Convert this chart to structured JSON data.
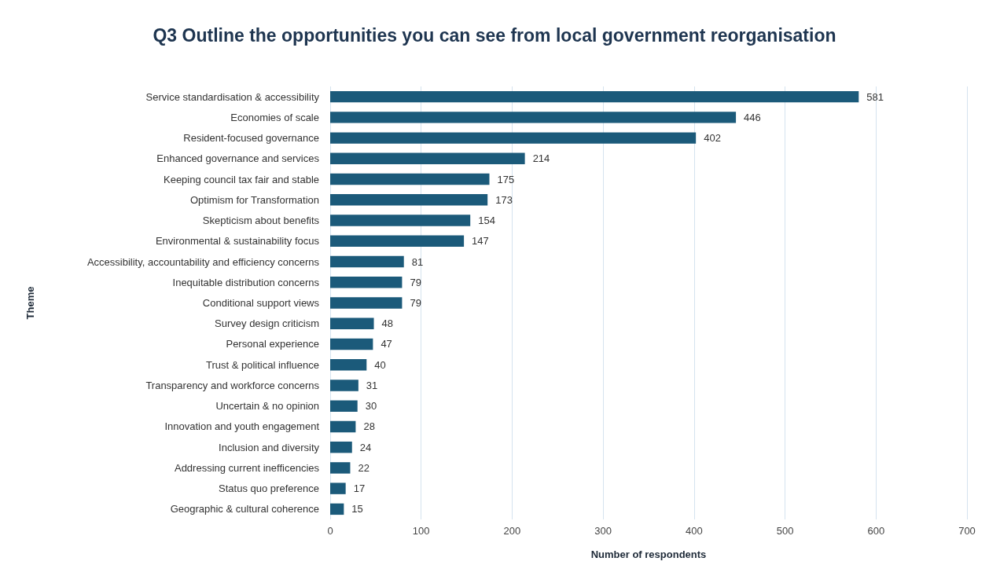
{
  "chart_data": {
    "type": "bar",
    "orientation": "horizontal",
    "title": "Q3 Outline the opportunities you can see from local government reorganisation",
    "xlabel": "Number of respondents",
    "ylabel": "Theme",
    "categories": [
      "Service standardisation & accessibility",
      "Economies of scale",
      "Resident-focused governance",
      "Enhanced governance and services",
      "Keeping council tax fair and stable",
      "Optimism for Transformation",
      "Skepticism about benefits",
      "Environmental & sustainability focus",
      "Accessibility, accountability and efficiency concerns",
      "Inequitable distribution concerns",
      "Conditional support views",
      "Survey design criticism",
      "Personal experience",
      "Trust & political influence",
      "Transparency and workforce concerns",
      "Uncertain & no opinion",
      "Innovation and youth engagement",
      "Inclusion and diversity",
      "Addressing current inefficencies",
      "Status quo preference",
      "Geographic & cultural coherence"
    ],
    "values": [
      581,
      446,
      402,
      214,
      175,
      173,
      154,
      147,
      81,
      79,
      79,
      48,
      47,
      40,
      31,
      30,
      28,
      24,
      22,
      17,
      15
    ],
    "color": "#1b5a7a",
    "xlim": [
      0,
      700
    ],
    "xticks": [
      0,
      100,
      200,
      300,
      400,
      500,
      600,
      700
    ],
    "grid": "x",
    "data_labels": true
  }
}
